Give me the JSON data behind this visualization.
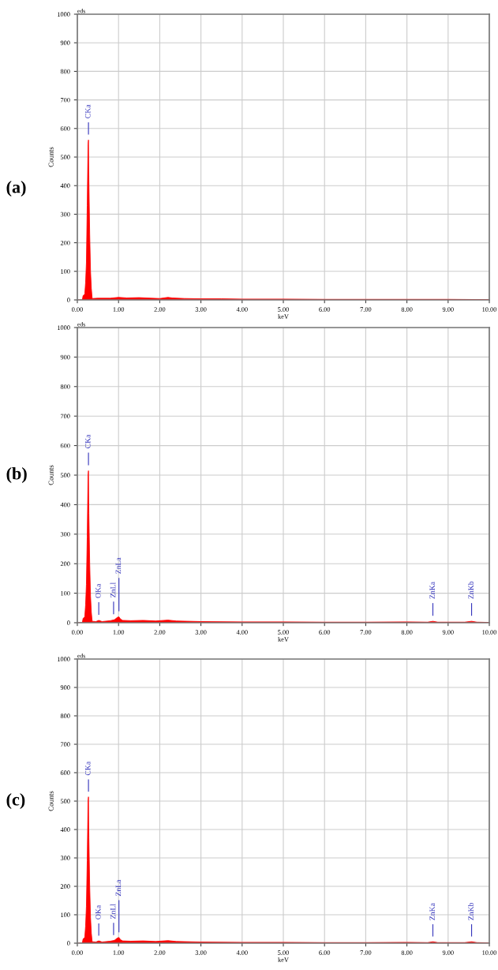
{
  "chart_data": [
    {
      "type": "area",
      "title": "(a)",
      "xlabel": "keV",
      "ylabel": "Counts",
      "xlim": [
        0,
        10
      ],
      "ylim": [
        0,
        1000
      ],
      "xticks": [
        {
          "value": 0,
          "label": "0.00"
        },
        {
          "value": 1,
          "label": "1.00"
        },
        {
          "value": 2,
          "label": "2.00"
        },
        {
          "value": 3,
          "label": "3.00"
        },
        {
          "value": 4,
          "label": "4.00"
        },
        {
          "value": 5,
          "label": "5.00"
        },
        {
          "value": 6,
          "label": "6.00"
        },
        {
          "value": 7,
          "label": "7.00"
        },
        {
          "value": 8,
          "label": "8.00"
        },
        {
          "value": 9,
          "label": "9.00"
        },
        {
          "value": 10,
          "label": "10.00"
        }
      ],
      "yticks": [
        0,
        100,
        200,
        300,
        400,
        500,
        600,
        700,
        800,
        900,
        1000
      ],
      "grid": true,
      "series": [
        {
          "color": "#ff0000",
          "x": [
            0,
            0.12,
            0.14,
            0.18,
            0.2,
            0.22,
            0.24,
            0.26,
            0.27,
            0.28,
            0.3,
            0.32,
            0.34,
            0.36,
            0.5,
            0.8,
            1.0,
            1.2,
            1.5,
            1.8,
            2.0,
            2.2,
            2.3,
            2.6,
            3.0,
            3.5,
            4.0,
            5.0,
            6.0,
            7.0,
            8.0,
            9.0,
            10.0
          ],
          "values": [
            0,
            0,
            15,
            20,
            60,
            130,
            330,
            545,
            560,
            420,
            230,
            100,
            40,
            5,
            6,
            6,
            9,
            7,
            8,
            6,
            5,
            9,
            7,
            5,
            4,
            4,
            3,
            3,
            2,
            2,
            2,
            2,
            1
          ]
        }
      ],
      "annotations": [
        "eds",
        {
          "text": "CKa",
          "x": 0.27,
          "y": 560
        }
      ]
    },
    {
      "type": "area",
      "title": "(b)",
      "xlabel": "keV",
      "ylabel": "Counts",
      "xlim": [
        0,
        10
      ],
      "ylim": [
        0,
        1000
      ],
      "xticks": [
        {
          "value": 0,
          "label": "0.00"
        },
        {
          "value": 1,
          "label": "1.00"
        },
        {
          "value": 2,
          "label": "2.00"
        },
        {
          "value": 3,
          "label": "3.00"
        },
        {
          "value": 4,
          "label": "4.00"
        },
        {
          "value": 5,
          "label": "5.00"
        },
        {
          "value": 6,
          "label": "6.00"
        },
        {
          "value": 7,
          "label": "7.00"
        },
        {
          "value": 8,
          "label": "8.00"
        },
        {
          "value": 9,
          "label": "9.00"
        },
        {
          "value": 10,
          "label": "10.00"
        }
      ],
      "yticks": [
        0,
        100,
        200,
        300,
        400,
        500,
        600,
        700,
        800,
        900,
        1000
      ],
      "grid": true,
      "series": [
        {
          "color": "#ff0000",
          "x": [
            0,
            0.12,
            0.14,
            0.18,
            0.2,
            0.22,
            0.24,
            0.26,
            0.27,
            0.28,
            0.3,
            0.32,
            0.34,
            0.36,
            0.45,
            0.52,
            0.6,
            0.8,
            0.9,
            0.97,
            1.01,
            1.05,
            1.1,
            1.3,
            1.6,
            1.9,
            2.2,
            2.4,
            3.0,
            4.0,
            5.0,
            6.0,
            7.0,
            8.0,
            8.5,
            8.63,
            8.75,
            9.4,
            9.57,
            9.7,
            10.0
          ],
          "values": [
            0,
            0,
            15,
            20,
            60,
            130,
            290,
            500,
            515,
            370,
            200,
            90,
            35,
            5,
            4,
            8,
            4,
            7,
            10,
            18,
            20,
            12,
            8,
            7,
            8,
            6,
            9,
            6,
            4,
            3,
            3,
            2,
            2,
            3,
            2,
            5,
            2,
            2,
            5,
            2,
            1
          ]
        }
      ],
      "annotations": [
        "eds",
        {
          "text": "CKa",
          "x": 0.27,
          "y": 515
        },
        {
          "text": "OKa",
          "x": 0.52,
          "y": 8
        },
        {
          "text": "ZnLl",
          "x": 0.88,
          "y": 10
        },
        {
          "text": "ZnLa",
          "x": 1.01,
          "y": 20
        },
        {
          "text": "ZnKa",
          "x": 8.63,
          "y": 5
        },
        {
          "text": "ZnKb",
          "x": 9.57,
          "y": 5
        }
      ]
    },
    {
      "type": "area",
      "title": "(c)",
      "xlabel": "keV",
      "ylabel": "Counts",
      "xlim": [
        0,
        10
      ],
      "ylim": [
        0,
        1000
      ],
      "xticks": [
        {
          "value": 0,
          "label": "0.00"
        },
        {
          "value": 1,
          "label": "1.00"
        },
        {
          "value": 2,
          "label": "2.00"
        },
        {
          "value": 3,
          "label": "3.00"
        },
        {
          "value": 4,
          "label": "4.00"
        },
        {
          "value": 5,
          "label": "5.00"
        },
        {
          "value": 6,
          "label": "6.00"
        },
        {
          "value": 7,
          "label": "7.00"
        },
        {
          "value": 8,
          "label": "8.00"
        },
        {
          "value": 9,
          "label": "9.00"
        },
        {
          "value": 10,
          "label": "10.00"
        }
      ],
      "yticks": [
        0,
        100,
        200,
        300,
        400,
        500,
        600,
        700,
        800,
        900,
        1000
      ],
      "grid": true,
      "series": [
        {
          "color": "#ff0000",
          "x": [
            0,
            0.12,
            0.14,
            0.18,
            0.2,
            0.22,
            0.24,
            0.26,
            0.27,
            0.28,
            0.3,
            0.32,
            0.34,
            0.36,
            0.45,
            0.52,
            0.6,
            0.8,
            0.9,
            0.97,
            1.01,
            1.05,
            1.1,
            1.3,
            1.6,
            1.9,
            2.2,
            2.4,
            3.0,
            4.0,
            5.0,
            6.0,
            7.0,
            8.0,
            8.5,
            8.63,
            8.75,
            9.4,
            9.57,
            9.7,
            10.0
          ],
          "values": [
            0,
            0,
            15,
            20,
            60,
            130,
            290,
            500,
            515,
            370,
            200,
            90,
            35,
            5,
            4,
            8,
            4,
            7,
            10,
            18,
            20,
            12,
            8,
            7,
            8,
            6,
            9,
            6,
            4,
            3,
            3,
            2,
            2,
            3,
            2,
            5,
            2,
            2,
            5,
            2,
            1
          ]
        }
      ],
      "annotations": [
        "eds",
        {
          "text": "CKa",
          "x": 0.27,
          "y": 515
        },
        {
          "text": "OKa",
          "x": 0.52,
          "y": 8
        },
        {
          "text": "ZnLl",
          "x": 0.88,
          "y": 10
        },
        {
          "text": "ZnLa",
          "x": 1.01,
          "y": 20
        },
        {
          "text": "ZnKa",
          "x": 8.63,
          "y": 5
        },
        {
          "text": "ZnKb",
          "x": 9.57,
          "y": 5
        }
      ]
    }
  ]
}
